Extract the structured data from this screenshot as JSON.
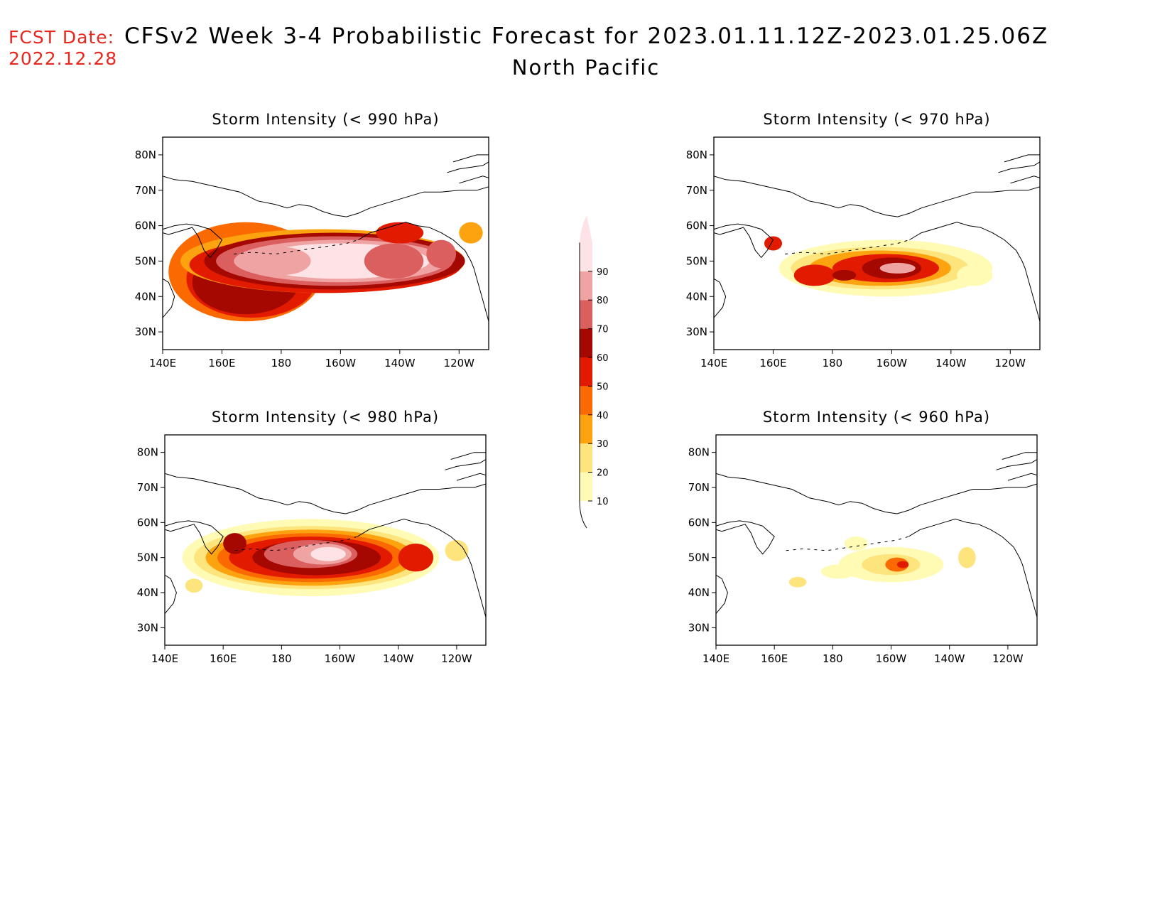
{
  "header": {
    "fcst_label": "FCST Date:",
    "fcst_date": "2022.12.28",
    "title": "CFSv2 Week 3-4 Probabilistic Forecast for 2023.01.11.12Z-2023.01.25.06Z",
    "region": "North Pacific"
  },
  "axes": {
    "lat_labels": [
      "80N",
      "70N",
      "60N",
      "50N",
      "40N",
      "30N"
    ],
    "lon_labels": [
      "140E",
      "160E",
      "180",
      "160W",
      "140W",
      "120W"
    ]
  },
  "panels": [
    {
      "title": "Storm Intensity (< 990 hPa)",
      "threshold_hPa": 990,
      "position": "top-left"
    },
    {
      "title": "Storm Intensity (< 970 hPa)",
      "threshold_hPa": 970,
      "position": "top-right"
    },
    {
      "title": "Storm Intensity (< 980 hPa)",
      "threshold_hPa": 980,
      "position": "bottom-left"
    },
    {
      "title": "Storm Intensity (< 960 hPa)",
      "threshold_hPa": 960,
      "position": "bottom-right"
    }
  ],
  "colorbar": {
    "labels": [
      "10",
      "20",
      "30",
      "40",
      "50",
      "60",
      "70",
      "80",
      "90"
    ],
    "colors": [
      "#fffbb4",
      "#fde47c",
      "#fca30f",
      "#fb6a00",
      "#e21b00",
      "#a40800",
      "#db5f5f",
      "#f0a3a3",
      "#fde3e6"
    ]
  }
}
